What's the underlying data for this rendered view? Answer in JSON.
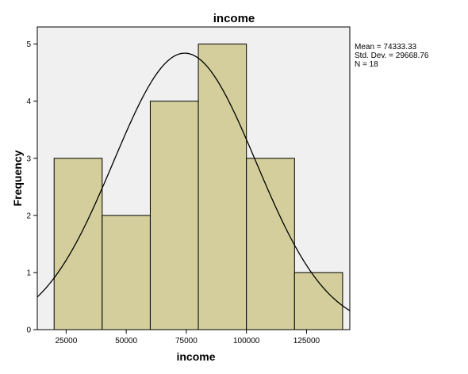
{
  "chart_data": {
    "type": "bar",
    "title": "income",
    "xlabel": "income",
    "ylabel": "Frequency",
    "bins": [
      {
        "from": 20000,
        "to": 40000,
        "count": 3
      },
      {
        "from": 40000,
        "to": 60000,
        "count": 2
      },
      {
        "from": 60000,
        "to": 80000,
        "count": 4
      },
      {
        "from": 80000,
        "to": 100000,
        "count": 5
      },
      {
        "from": 100000,
        "to": 120000,
        "count": 3
      },
      {
        "from": 120000,
        "to": 140000,
        "count": 1
      }
    ],
    "xlim": [
      13000,
      143000
    ],
    "ylim": [
      0,
      5.3
    ],
    "x_ticks": [
      25000,
      50000,
      75000,
      100000,
      125000
    ],
    "y_ticks": [
      0,
      1,
      2,
      3,
      4,
      5
    ],
    "normal_curve": {
      "mean": 74333.33,
      "std_dev": 29668.76,
      "n": 18,
      "bin_width": 20000
    },
    "stats_lines": [
      "Mean = 74333.33",
      "Std. Dev. = 29668.76",
      "N = 18"
    ],
    "grid": false,
    "colors": {
      "bar_fill": "#d3ce9b",
      "bar_stroke": "#000000",
      "plot_background": "#f0f0f0",
      "curve": "#000000"
    }
  }
}
